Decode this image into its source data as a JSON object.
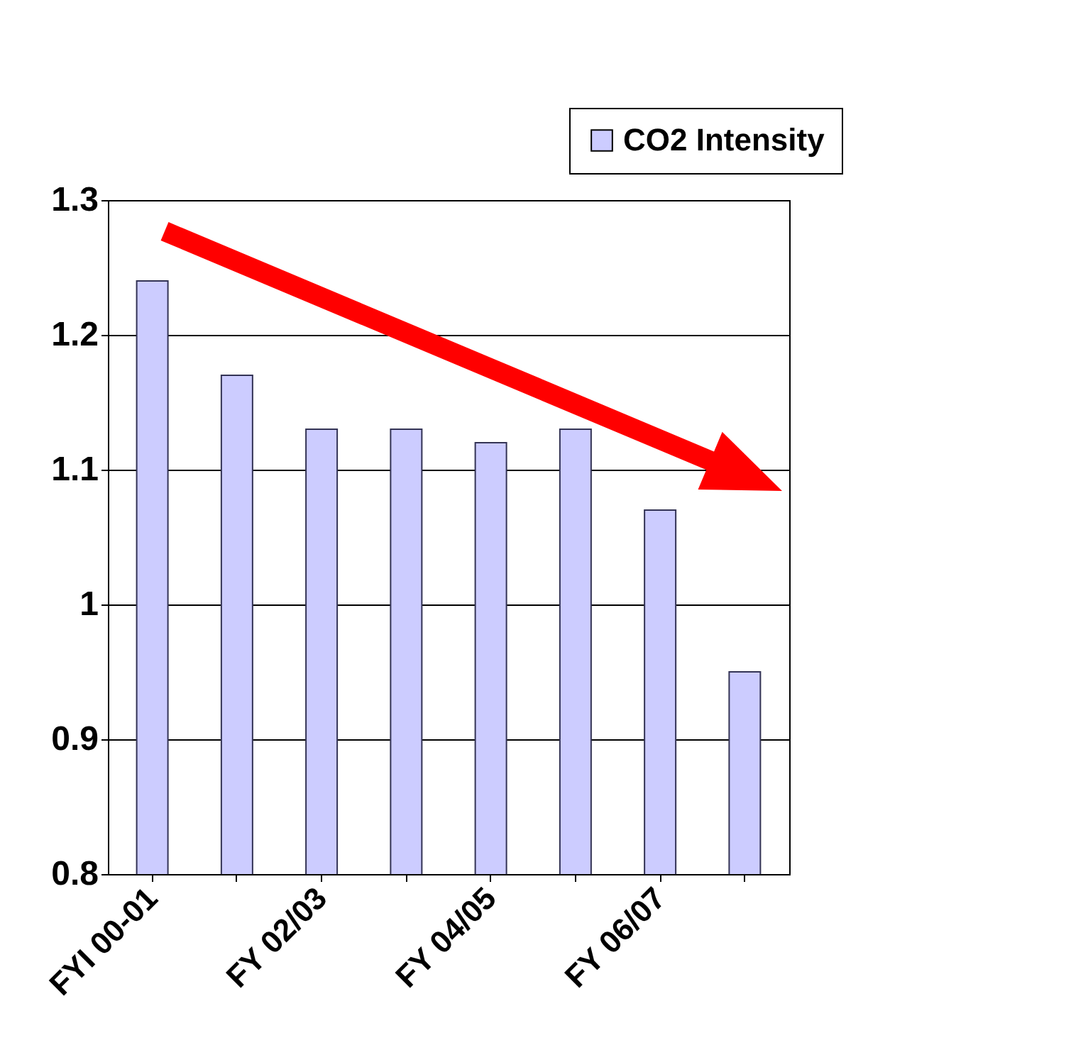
{
  "chart_data": {
    "type": "bar",
    "categories": [
      "FYI 00-01",
      null,
      "FY 02/03",
      null,
      "FY 04/05",
      null,
      "FY 06/07",
      null
    ],
    "series": [
      {
        "name": "CO2 Intensity",
        "color": "#ccccff",
        "values": [
          1.24,
          1.17,
          1.13,
          1.13,
          1.12,
          1.13,
          1.07,
          0.95
        ]
      }
    ],
    "ylim": [
      0.8,
      1.3
    ],
    "yticks": [
      0.8,
      0.9,
      {
        "value": 1,
        "label": "1"
      },
      1.1,
      1.2,
      1.3
    ],
    "grid": "y",
    "legend": "top right"
  }
}
